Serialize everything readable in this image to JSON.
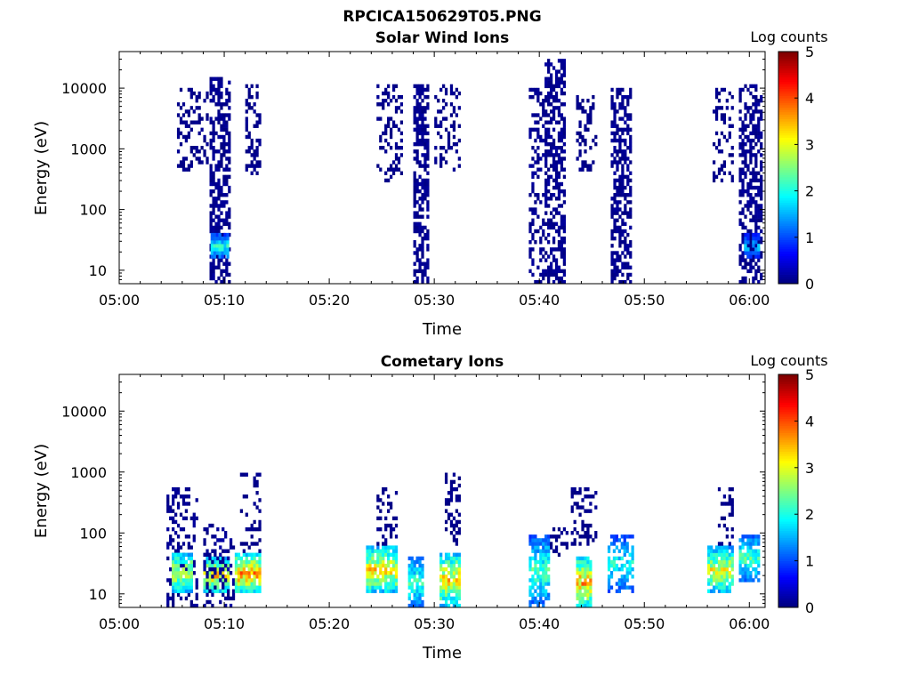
{
  "figure_title": "RPCICA150629T05.PNG",
  "chart_data": [
    {
      "type": "heatmap",
      "title": "Solar Wind Ions",
      "xlabel": "Time",
      "ylabel": "Energy (eV)",
      "x_ticks": [
        "05:00",
        "05:10",
        "05:20",
        "05:30",
        "05:40",
        "05:50",
        "06:00"
      ],
      "x_tick_minutes": [
        0,
        10,
        20,
        30,
        40,
        50,
        60
      ],
      "xlim_minutes": [
        0,
        61.5
      ],
      "y_scale": "log",
      "ylim": [
        6,
        40000
      ],
      "y_ticks": [
        10,
        100,
        1000,
        10000
      ],
      "y_tick_labels": [
        "10",
        "100",
        "1000",
        "10000"
      ],
      "colorbar": {
        "label": "Log counts",
        "range": [
          0,
          5
        ],
        "ticks": [
          "0",
          "1",
          "2",
          "3",
          "4",
          "5"
        ],
        "colormap": "jet"
      },
      "clusters": [
        {
          "t_start": 5.5,
          "t_end": 8.3,
          "e_min": 400,
          "e_max": 10000,
          "level": 0.1,
          "density": 0.35
        },
        {
          "t_start": 8.6,
          "t_end": 10.5,
          "e_min": 6,
          "e_max": 15000,
          "level": 0.15,
          "density": 0.55
        },
        {
          "t_start": 8.7,
          "t_end": 10.3,
          "e_min": 15,
          "e_max": 40,
          "level": 2.0,
          "density": 0.9
        },
        {
          "t_start": 12.0,
          "t_end": 13.5,
          "e_min": 350,
          "e_max": 12000,
          "level": 0.1,
          "density": 0.35
        },
        {
          "t_start": 24.5,
          "t_end": 27.0,
          "e_min": 300,
          "e_max": 12000,
          "level": 0.1,
          "density": 0.3
        },
        {
          "t_start": 28.0,
          "t_end": 29.5,
          "e_min": 6,
          "e_max": 12000,
          "level": 0.15,
          "density": 0.6
        },
        {
          "t_start": 30.0,
          "t_end": 32.5,
          "e_min": 400,
          "e_max": 12000,
          "level": 0.1,
          "density": 0.3
        },
        {
          "t_start": 39.0,
          "t_end": 40.5,
          "e_min": 6,
          "e_max": 10000,
          "level": 0.15,
          "density": 0.35
        },
        {
          "t_start": 40.5,
          "t_end": 42.5,
          "e_min": 6,
          "e_max": 30000,
          "level": 0.15,
          "density": 0.55
        },
        {
          "t_start": 43.5,
          "t_end": 45.5,
          "e_min": 400,
          "e_max": 8000,
          "level": 0.1,
          "density": 0.3
        },
        {
          "t_start": 46.8,
          "t_end": 48.8,
          "e_min": 6,
          "e_max": 10000,
          "level": 0.15,
          "density": 0.55
        },
        {
          "t_start": 56.5,
          "t_end": 58.5,
          "e_min": 300,
          "e_max": 10000,
          "level": 0.1,
          "density": 0.3
        },
        {
          "t_start": 59.0,
          "t_end": 61.5,
          "e_min": 6,
          "e_max": 12000,
          "level": 0.15,
          "density": 0.55
        },
        {
          "t_start": 59.5,
          "t_end": 61.0,
          "e_min": 15,
          "e_max": 40,
          "level": 1.5,
          "density": 0.8
        }
      ]
    },
    {
      "type": "heatmap",
      "title": "Cometary Ions",
      "xlabel": "Time",
      "ylabel": "Energy (eV)",
      "x_ticks": [
        "05:00",
        "05:10",
        "05:20",
        "05:30",
        "05:40",
        "05:50",
        "06:00"
      ],
      "x_tick_minutes": [
        0,
        10,
        20,
        30,
        40,
        50,
        60
      ],
      "xlim_minutes": [
        0,
        61.5
      ],
      "y_scale": "log",
      "ylim": [
        6,
        40000
      ],
      "y_ticks": [
        10,
        100,
        1000,
        10000
      ],
      "y_tick_labels": [
        "10",
        "100",
        "1000",
        "10000"
      ],
      "colorbar": {
        "label": "Log counts",
        "range": [
          0,
          5
        ],
        "ticks": [
          "0",
          "1",
          "2",
          "3",
          "4",
          "5"
        ],
        "colormap": "jet"
      },
      "clusters": [
        {
          "t_start": 4.5,
          "t_end": 7.5,
          "e_min": 6,
          "e_max": 550,
          "level": 0.15,
          "density": 0.3
        },
        {
          "t_start": 5.0,
          "t_end": 7.0,
          "e_min": 10,
          "e_max": 50,
          "level": 3.0,
          "density": 0.9
        },
        {
          "t_start": 8.0,
          "t_end": 10.5,
          "e_min": 10,
          "e_max": 40,
          "level": 3.3,
          "density": 0.9
        },
        {
          "t_start": 8.0,
          "t_end": 11.0,
          "e_min": 6,
          "e_max": 150,
          "level": 0.2,
          "density": 0.3
        },
        {
          "t_start": 11.0,
          "t_end": 13.5,
          "e_min": 10,
          "e_max": 45,
          "level": 3.6,
          "density": 0.9
        },
        {
          "t_start": 11.5,
          "t_end": 13.5,
          "e_min": 50,
          "e_max": 1000,
          "level": 0.1,
          "density": 0.3
        },
        {
          "t_start": 23.5,
          "t_end": 26.5,
          "e_min": 10,
          "e_max": 60,
          "level": 3.2,
          "density": 0.85
        },
        {
          "t_start": 24.5,
          "t_end": 26.5,
          "e_min": 60,
          "e_max": 600,
          "level": 0.1,
          "density": 0.3
        },
        {
          "t_start": 27.5,
          "t_end": 28.8,
          "e_min": 6,
          "e_max": 40,
          "level": 2.2,
          "density": 0.8
        },
        {
          "t_start": 30.5,
          "t_end": 32.5,
          "e_min": 6,
          "e_max": 50,
          "level": 3.2,
          "density": 0.85
        },
        {
          "t_start": 31.0,
          "t_end": 32.5,
          "e_min": 60,
          "e_max": 1000,
          "level": 0.1,
          "density": 0.3
        },
        {
          "t_start": 39.0,
          "t_end": 41.0,
          "e_min": 6,
          "e_max": 90,
          "level": 2.2,
          "density": 0.75
        },
        {
          "t_start": 41.0,
          "t_end": 43.0,
          "e_min": 40,
          "e_max": 120,
          "level": 0.1,
          "density": 0.3
        },
        {
          "t_start": 43.5,
          "t_end": 45.0,
          "e_min": 6,
          "e_max": 40,
          "level": 3.5,
          "density": 0.85
        },
        {
          "t_start": 43.0,
          "t_end": 45.5,
          "e_min": 60,
          "e_max": 550,
          "level": 0.1,
          "density": 0.35
        },
        {
          "t_start": 46.5,
          "t_end": 49.0,
          "e_min": 10,
          "e_max": 90,
          "level": 2.0,
          "density": 0.6
        },
        {
          "t_start": 56.0,
          "t_end": 58.5,
          "e_min": 10,
          "e_max": 60,
          "level": 3.0,
          "density": 0.85
        },
        {
          "t_start": 57.0,
          "t_end": 58.5,
          "e_min": 60,
          "e_max": 600,
          "level": 0.1,
          "density": 0.3
        },
        {
          "t_start": 59.0,
          "t_end": 61.0,
          "e_min": 15,
          "e_max": 100,
          "level": 2.2,
          "density": 0.75
        }
      ]
    }
  ]
}
